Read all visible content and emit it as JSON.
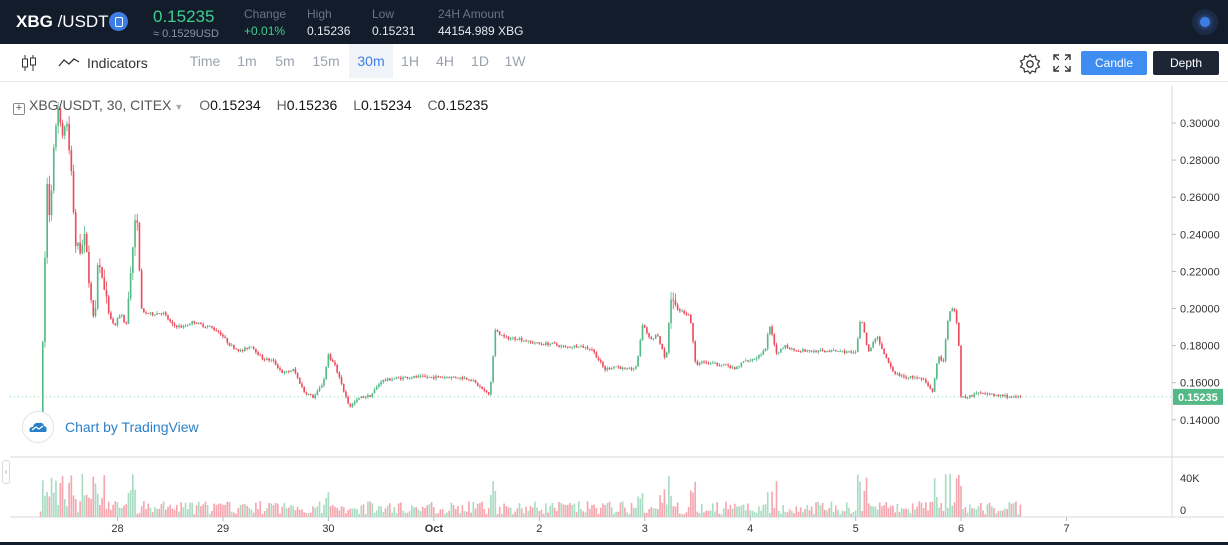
{
  "header": {
    "pair_base": "XBG",
    "pair_sep": " /USDT",
    "last_price": "0.15235",
    "usd_price": "≈ 0.1529USD",
    "stats": [
      {
        "label": "Change",
        "value": "+0.01%",
        "green": true
      },
      {
        "label": "High",
        "value": "0.15236",
        "green": false
      },
      {
        "label": "Low",
        "value": "0.15231",
        "green": false
      },
      {
        "label": "24H Amount",
        "value": "44154.989 XBG",
        "green": false
      }
    ]
  },
  "toolbar": {
    "indicators_label": "Indicators",
    "timeframes": [
      "Time",
      "1m",
      "5m",
      "15m",
      "30m",
      "1H",
      "4H",
      "1D",
      "1W"
    ],
    "active_timeframe": "30m",
    "candle_label": "Candle",
    "depth_label": "Depth"
  },
  "legend": {
    "symbol": "XBG/USDT, 30, CITEX",
    "open_key": "O",
    "open": "0.15234",
    "high_key": "H",
    "high": "0.15236",
    "low_key": "L",
    "low": "0.15234",
    "close_key": "C",
    "close": "0.15235"
  },
  "watermark": "Chart by TradingView",
  "chart_data": {
    "type": "candlestick",
    "price_axis": {
      "ticks": [
        "0.30000",
        "0.28000",
        "0.26000",
        "0.24000",
        "0.22000",
        "0.20000",
        "0.18000",
        "0.16000",
        "0.14000"
      ],
      "ylim": [
        0.128,
        0.31
      ]
    },
    "last_price_label": "0.15235",
    "volume_axis": {
      "ticks": [
        "40K",
        "0"
      ]
    },
    "x_ticks": [
      "28",
      "29",
      "30",
      "Oct",
      "2",
      "3",
      "4",
      "5",
      "6",
      "7"
    ],
    "x_tick_days": [
      28,
      29,
      30,
      31,
      32,
      33,
      34,
      35,
      36,
      37
    ],
    "x_range_days": [
      26.98,
      38.0
    ],
    "colors": {
      "up": "#53b987",
      "down": "#eb4d5c",
      "volume_up": "#a9dcc3",
      "volume_down": "#f5a6ae",
      "axis_text": "#333333",
      "grid": "#e6e8ec",
      "price_tag": "#53b987"
    },
    "price_path": [
      [
        27.27,
        0.14
      ],
      [
        27.3,
        0.2
      ],
      [
        27.33,
        0.27
      ],
      [
        27.36,
        0.245
      ],
      [
        27.4,
        0.29
      ],
      [
        27.43,
        0.31
      ],
      [
        27.47,
        0.295
      ],
      [
        27.52,
        0.3
      ],
      [
        27.56,
        0.275
      ],
      [
        27.6,
        0.235
      ],
      [
        27.65,
        0.232
      ],
      [
        27.7,
        0.24
      ],
      [
        27.74,
        0.205
      ],
      [
        27.78,
        0.193
      ],
      [
        27.82,
        0.23
      ],
      [
        27.87,
        0.21
      ],
      [
        27.92,
        0.197
      ],
      [
        27.97,
        0.19
      ],
      [
        28.03,
        0.198
      ],
      [
        28.08,
        0.19
      ],
      [
        28.13,
        0.225
      ],
      [
        28.18,
        0.253
      ],
      [
        28.23,
        0.198
      ],
      [
        28.33,
        0.197
      ],
      [
        28.43,
        0.198
      ],
      [
        28.52,
        0.191
      ],
      [
        28.62,
        0.19
      ],
      [
        28.72,
        0.193
      ],
      [
        28.8,
        0.191
      ],
      [
        28.88,
        0.19
      ],
      [
        28.97,
        0.187
      ],
      [
        29.07,
        0.18
      ],
      [
        29.17,
        0.177
      ],
      [
        29.27,
        0.18
      ],
      [
        29.37,
        0.173
      ],
      [
        29.47,
        0.172
      ],
      [
        29.57,
        0.165
      ],
      [
        29.67,
        0.167
      ],
      [
        29.77,
        0.155
      ],
      [
        29.86,
        0.152
      ],
      [
        29.95,
        0.16
      ],
      [
        30.0,
        0.175
      ],
      [
        30.07,
        0.168
      ],
      [
        30.13,
        0.158
      ],
      [
        30.2,
        0.147
      ],
      [
        30.3,
        0.152
      ],
      [
        30.4,
        0.153
      ],
      [
        30.5,
        0.161
      ],
      [
        30.6,
        0.162
      ],
      [
        30.75,
        0.163
      ],
      [
        30.9,
        0.163
      ],
      [
        31.05,
        0.163
      ],
      [
        31.2,
        0.163
      ],
      [
        31.35,
        0.162
      ],
      [
        31.47,
        0.156
      ],
      [
        31.53,
        0.153
      ],
      [
        31.58,
        0.188
      ],
      [
        31.68,
        0.184
      ],
      [
        31.8,
        0.184
      ],
      [
        31.9,
        0.182
      ],
      [
        32.0,
        0.181
      ],
      [
        32.12,
        0.181
      ],
      [
        32.25,
        0.179
      ],
      [
        32.37,
        0.18
      ],
      [
        32.5,
        0.178
      ],
      [
        32.62,
        0.167
      ],
      [
        32.72,
        0.169
      ],
      [
        32.82,
        0.167
      ],
      [
        32.92,
        0.168
      ],
      [
        32.98,
        0.192
      ],
      [
        33.05,
        0.183
      ],
      [
        33.12,
        0.186
      ],
      [
        33.2,
        0.171
      ],
      [
        33.25,
        0.208
      ],
      [
        33.3,
        0.2
      ],
      [
        33.37,
        0.198
      ],
      [
        33.43,
        0.196
      ],
      [
        33.48,
        0.17
      ],
      [
        33.55,
        0.171
      ],
      [
        33.65,
        0.17
      ],
      [
        33.75,
        0.17
      ],
      [
        33.85,
        0.167
      ],
      [
        33.95,
        0.172
      ],
      [
        34.05,
        0.173
      ],
      [
        34.15,
        0.178
      ],
      [
        34.18,
        0.192
      ],
      [
        34.25,
        0.175
      ],
      [
        34.33,
        0.18
      ],
      [
        34.4,
        0.178
      ],
      [
        34.55,
        0.177
      ],
      [
        34.7,
        0.177
      ],
      [
        34.85,
        0.177
      ],
      [
        35.0,
        0.176
      ],
      [
        35.05,
        0.196
      ],
      [
        35.12,
        0.176
      ],
      [
        35.2,
        0.186
      ],
      [
        35.27,
        0.175
      ],
      [
        35.35,
        0.166
      ],
      [
        35.45,
        0.163
      ],
      [
        35.55,
        0.163
      ],
      [
        35.65,
        0.161
      ],
      [
        35.73,
        0.155
      ],
      [
        35.78,
        0.175
      ],
      [
        35.83,
        0.171
      ],
      [
        35.88,
        0.197
      ],
      [
        35.93,
        0.2
      ],
      [
        35.97,
        0.19
      ],
      [
        36.0,
        0.152
      ],
      [
        36.1,
        0.153
      ],
      [
        36.2,
        0.155
      ],
      [
        36.3,
        0.153
      ],
      [
        36.4,
        0.153
      ],
      [
        36.5,
        0.152
      ],
      [
        36.58,
        0.15235
      ]
    ]
  }
}
